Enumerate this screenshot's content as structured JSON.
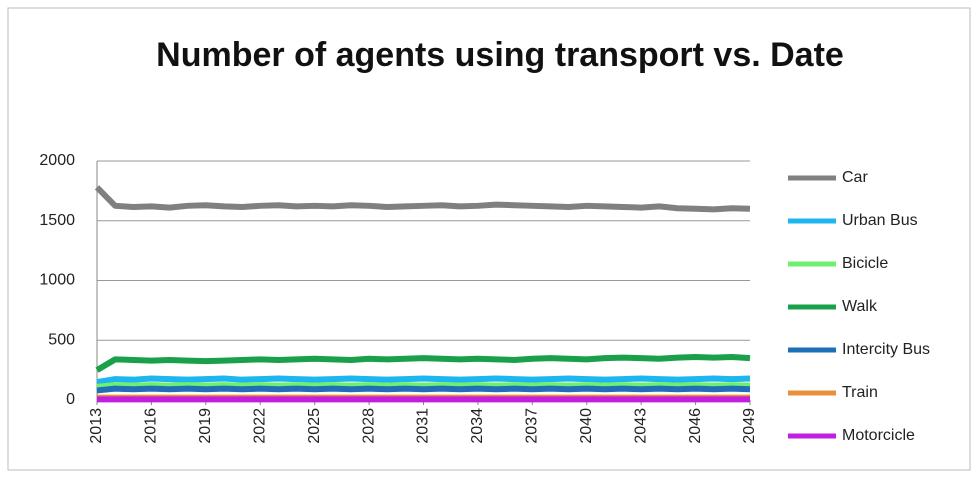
{
  "chart_data": {
    "type": "line",
    "title": "Number of agents using transport vs. Date",
    "x": [
      2013,
      2014,
      2015,
      2016,
      2017,
      2018,
      2019,
      2020,
      2021,
      2022,
      2023,
      2024,
      2025,
      2026,
      2027,
      2028,
      2029,
      2030,
      2031,
      2032,
      2033,
      2034,
      2035,
      2036,
      2037,
      2038,
      2039,
      2040,
      2041,
      2042,
      2043,
      2044,
      2045,
      2046,
      2047,
      2048,
      2049
    ],
    "xlim": [
      2013,
      2049
    ],
    "xticks": [
      2013,
      2016,
      2019,
      2022,
      2025,
      2028,
      2031,
      2034,
      2037,
      2040,
      2043,
      2046,
      2049
    ],
    "ylim": [
      0,
      2000
    ],
    "yticks": [
      0,
      500,
      1000,
      1500,
      2000
    ],
    "grid": true,
    "series": [
      {
        "name": "Car",
        "color": "#808080",
        "values": [
          1780,
          1625,
          1615,
          1620,
          1610,
          1625,
          1630,
          1620,
          1615,
          1625,
          1630,
          1620,
          1625,
          1620,
          1630,
          1625,
          1615,
          1620,
          1625,
          1630,
          1620,
          1625,
          1635,
          1630,
          1625,
          1620,
          1615,
          1625,
          1620,
          1615,
          1610,
          1620,
          1605,
          1600,
          1595,
          1605,
          1600
        ]
      },
      {
        "name": "Urban Bus",
        "color": "#1fb5ee",
        "values": [
          150,
          175,
          170,
          180,
          175,
          170,
          175,
          180,
          170,
          175,
          180,
          175,
          170,
          175,
          180,
          175,
          170,
          175,
          180,
          175,
          170,
          175,
          180,
          175,
          170,
          175,
          180,
          175,
          170,
          175,
          180,
          175,
          170,
          175,
          180,
          175,
          180
        ]
      },
      {
        "name": "Bicicle",
        "color": "#6ef06e",
        "values": [
          110,
          125,
          120,
          125,
          120,
          125,
          120,
          125,
          120,
          125,
          120,
          125,
          120,
          125,
          120,
          125,
          120,
          125,
          120,
          125,
          120,
          125,
          120,
          125,
          120,
          125,
          120,
          125,
          120,
          125,
          120,
          125,
          120,
          125,
          120,
          125,
          120
        ]
      },
      {
        "name": "Walk",
        "color": "#1aa04a",
        "values": [
          250,
          340,
          335,
          330,
          335,
          330,
          325,
          330,
          335,
          340,
          335,
          340,
          345,
          340,
          335,
          345,
          340,
          345,
          350,
          345,
          340,
          345,
          340,
          335,
          345,
          350,
          345,
          340,
          350,
          355,
          350,
          345,
          355,
          360,
          355,
          360,
          350
        ]
      },
      {
        "name": "Intercity Bus",
        "color": "#1f6fb8",
        "values": [
          80,
          95,
          90,
          95,
          90,
          95,
          90,
          95,
          90,
          95,
          90,
          95,
          90,
          95,
          90,
          95,
          90,
          95,
          90,
          95,
          90,
          95,
          90,
          95,
          90,
          95,
          90,
          95,
          90,
          95,
          90,
          95,
          90,
          95,
          90,
          95,
          90
        ]
      },
      {
        "name": "Train",
        "color": "#e8913a",
        "values": [
          20,
          20,
          20,
          20,
          20,
          20,
          20,
          20,
          20,
          20,
          20,
          20,
          20,
          20,
          20,
          20,
          20,
          20,
          20,
          20,
          20,
          20,
          20,
          20,
          20,
          20,
          20,
          20,
          20,
          20,
          20,
          20,
          20,
          20,
          20,
          20,
          20
        ]
      },
      {
        "name": "Motorcicle",
        "color": "#c21ee0",
        "values": [
          5,
          5,
          5,
          5,
          5,
          5,
          5,
          5,
          5,
          5,
          5,
          5,
          5,
          5,
          5,
          5,
          5,
          5,
          5,
          5,
          5,
          5,
          5,
          5,
          5,
          5,
          5,
          5,
          5,
          5,
          5,
          5,
          5,
          5,
          5,
          5,
          5
        ]
      }
    ]
  }
}
